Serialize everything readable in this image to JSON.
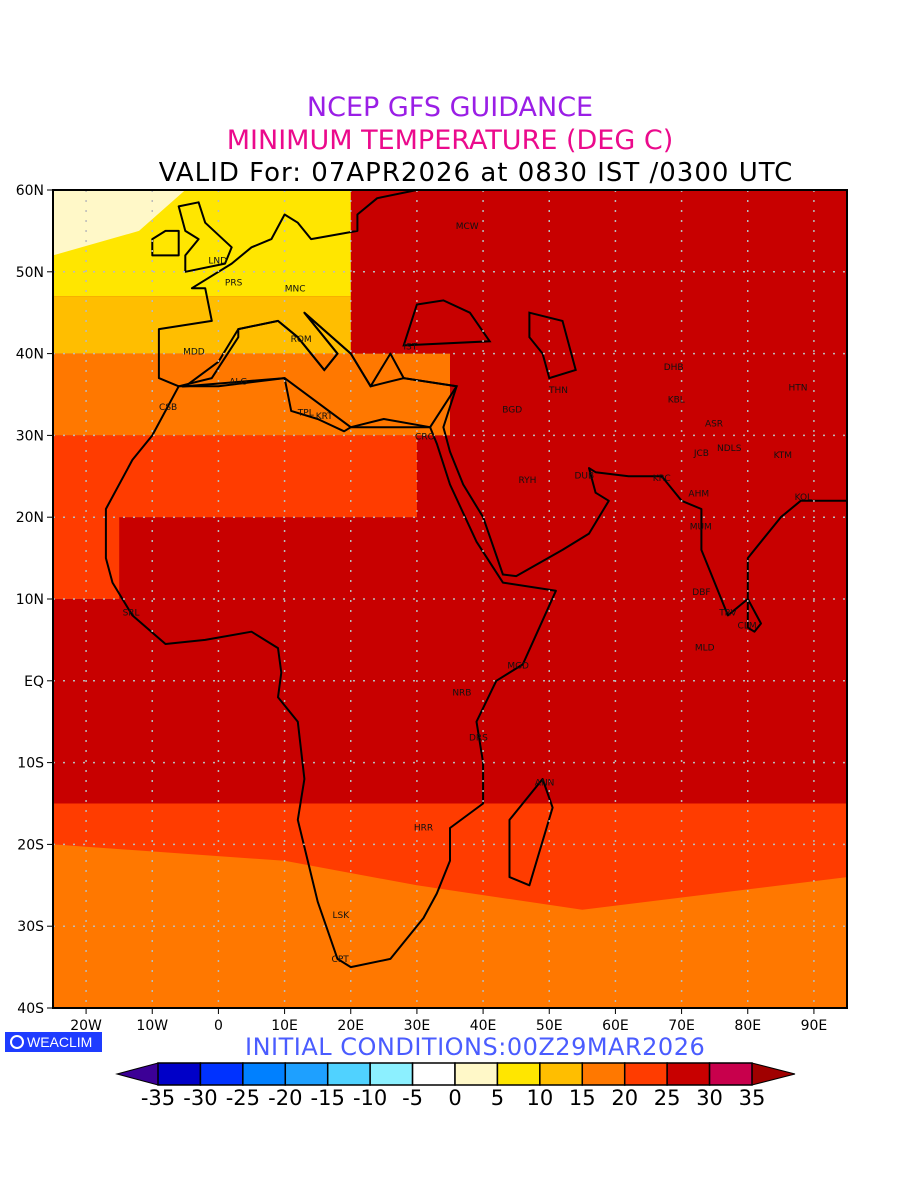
{
  "title": {
    "line1": "NCEP GFS GUIDANCE",
    "line2": "MINIMUM TEMPERATURE (DEG C)",
    "line3": "VALID For: 07APR2026 at 0830 IST /0300 UTC"
  },
  "axes": {
    "lon_ticks": [
      {
        "value": -20,
        "label": "20W"
      },
      {
        "value": -10,
        "label": "10W"
      },
      {
        "value": 0,
        "label": "0"
      },
      {
        "value": 10,
        "label": "10E"
      },
      {
        "value": 20,
        "label": "20E"
      },
      {
        "value": 30,
        "label": "30E"
      },
      {
        "value": 40,
        "label": "40E"
      },
      {
        "value": 50,
        "label": "50E"
      },
      {
        "value": 60,
        "label": "60E"
      },
      {
        "value": 70,
        "label": "70E"
      },
      {
        "value": 80,
        "label": "80E"
      },
      {
        "value": 90,
        "label": "90E"
      }
    ],
    "lat_ticks": [
      {
        "value": 60,
        "label": "60N"
      },
      {
        "value": 50,
        "label": "50N"
      },
      {
        "value": 40,
        "label": "40N"
      },
      {
        "value": 30,
        "label": "30N"
      },
      {
        "value": 20,
        "label": "20N"
      },
      {
        "value": 10,
        "label": "10N"
      },
      {
        "value": 0,
        "label": "EQ"
      },
      {
        "value": -10,
        "label": "10S"
      },
      {
        "value": -20,
        "label": "20S"
      },
      {
        "value": -30,
        "label": "30S"
      },
      {
        "value": -40,
        "label": "40S"
      }
    ],
    "lon_range": [
      -25,
      95
    ],
    "lat_range": [
      -40,
      60
    ]
  },
  "cities": [
    {
      "code": "MCW",
      "lon": 37.6,
      "lat": 55.7
    },
    {
      "code": "LND",
      "lon": -0.1,
      "lat": 51.5
    },
    {
      "code": "PRS",
      "lon": 2.3,
      "lat": 48.8
    },
    {
      "code": "MNC",
      "lon": 11.6,
      "lat": 48.1
    },
    {
      "code": "ROM",
      "lon": 12.5,
      "lat": 41.9
    },
    {
      "code": "MDD",
      "lon": -3.7,
      "lat": 40.4
    },
    {
      "code": "IST",
      "lon": 29,
      "lat": 41
    },
    {
      "code": "ALG",
      "lon": 3,
      "lat": 36.7
    },
    {
      "code": "CSB",
      "lon": -7.6,
      "lat": 33.6
    },
    {
      "code": "TPL",
      "lon": 13.2,
      "lat": 32.9
    },
    {
      "code": "KRT",
      "lon": 16,
      "lat": 32.5
    },
    {
      "code": "CRO",
      "lon": 31.2,
      "lat": 30
    },
    {
      "code": "BGD",
      "lon": 44.4,
      "lat": 33.3
    },
    {
      "code": "THN",
      "lon": 51.4,
      "lat": 35.7
    },
    {
      "code": "DHB",
      "lon": 68.8,
      "lat": 38.5
    },
    {
      "code": "HTN",
      "lon": 87.6,
      "lat": 36
    },
    {
      "code": "KBL",
      "lon": 69.2,
      "lat": 34.5
    },
    {
      "code": "RYH",
      "lon": 46.7,
      "lat": 24.7
    },
    {
      "code": "DUB",
      "lon": 55.3,
      "lat": 25.2
    },
    {
      "code": "KRC",
      "lon": 67,
      "lat": 24.9
    },
    {
      "code": "JCB",
      "lon": 73,
      "lat": 28
    },
    {
      "code": "AHM",
      "lon": 72.6,
      "lat": 23
    },
    {
      "code": "NDLS",
      "lon": 77.2,
      "lat": 28.6
    },
    {
      "code": "ASR",
      "lon": 74.9,
      "lat": 31.6
    },
    {
      "code": "KTM",
      "lon": 85.3,
      "lat": 27.7
    },
    {
      "code": "KOL",
      "lon": 88.4,
      "lat": 22.6
    },
    {
      "code": "MUM",
      "lon": 72.9,
      "lat": 19
    },
    {
      "code": "DBF",
      "lon": 73,
      "lat": 11
    },
    {
      "code": "TRV",
      "lon": 77,
      "lat": 8.5
    },
    {
      "code": "CLM",
      "lon": 79.9,
      "lat": 6.9
    },
    {
      "code": "MLD",
      "lon": 73.5,
      "lat": 4.2
    },
    {
      "code": "MGD",
      "lon": 45.3,
      "lat": 2
    },
    {
      "code": "NRB",
      "lon": 36.8,
      "lat": -1.3
    },
    {
      "code": "DRS",
      "lon": 39.3,
      "lat": -6.8
    },
    {
      "code": "ANN",
      "lon": 49.3,
      "lat": -12.3
    },
    {
      "code": "HRR",
      "lon": 31,
      "lat": -17.8
    },
    {
      "code": "LSK",
      "lon": 18.5,
      "lat": -28.5
    },
    {
      "code": "CPT",
      "lon": 18.4,
      "lat": -33.9
    },
    {
      "code": "SRL",
      "lon": -13.2,
      "lat": 8.5
    }
  ],
  "footer": {
    "badge": "WEACLIM",
    "initial_conditions": "INITIAL  CONDITIONS:00Z29MAR2026"
  },
  "colorbar": {
    "labels": [
      "-35",
      "-30",
      "-25",
      "-20",
      "-15",
      "-10",
      "-5",
      "0",
      "5",
      "10",
      "15",
      "20",
      "25",
      "30",
      "35"
    ],
    "below_color": "#3c0096",
    "above_color": "#a00000",
    "colors": [
      "#0000c8",
      "#0032ff",
      "#0080ff",
      "#1ea0ff",
      "#50d2ff",
      "#8cf0ff",
      "#ffffff",
      "#fff8c8",
      "#ffe600",
      "#ffbe00",
      "#ff7800",
      "#ff3c00",
      "#c80000",
      "#c8004c"
    ]
  }
}
